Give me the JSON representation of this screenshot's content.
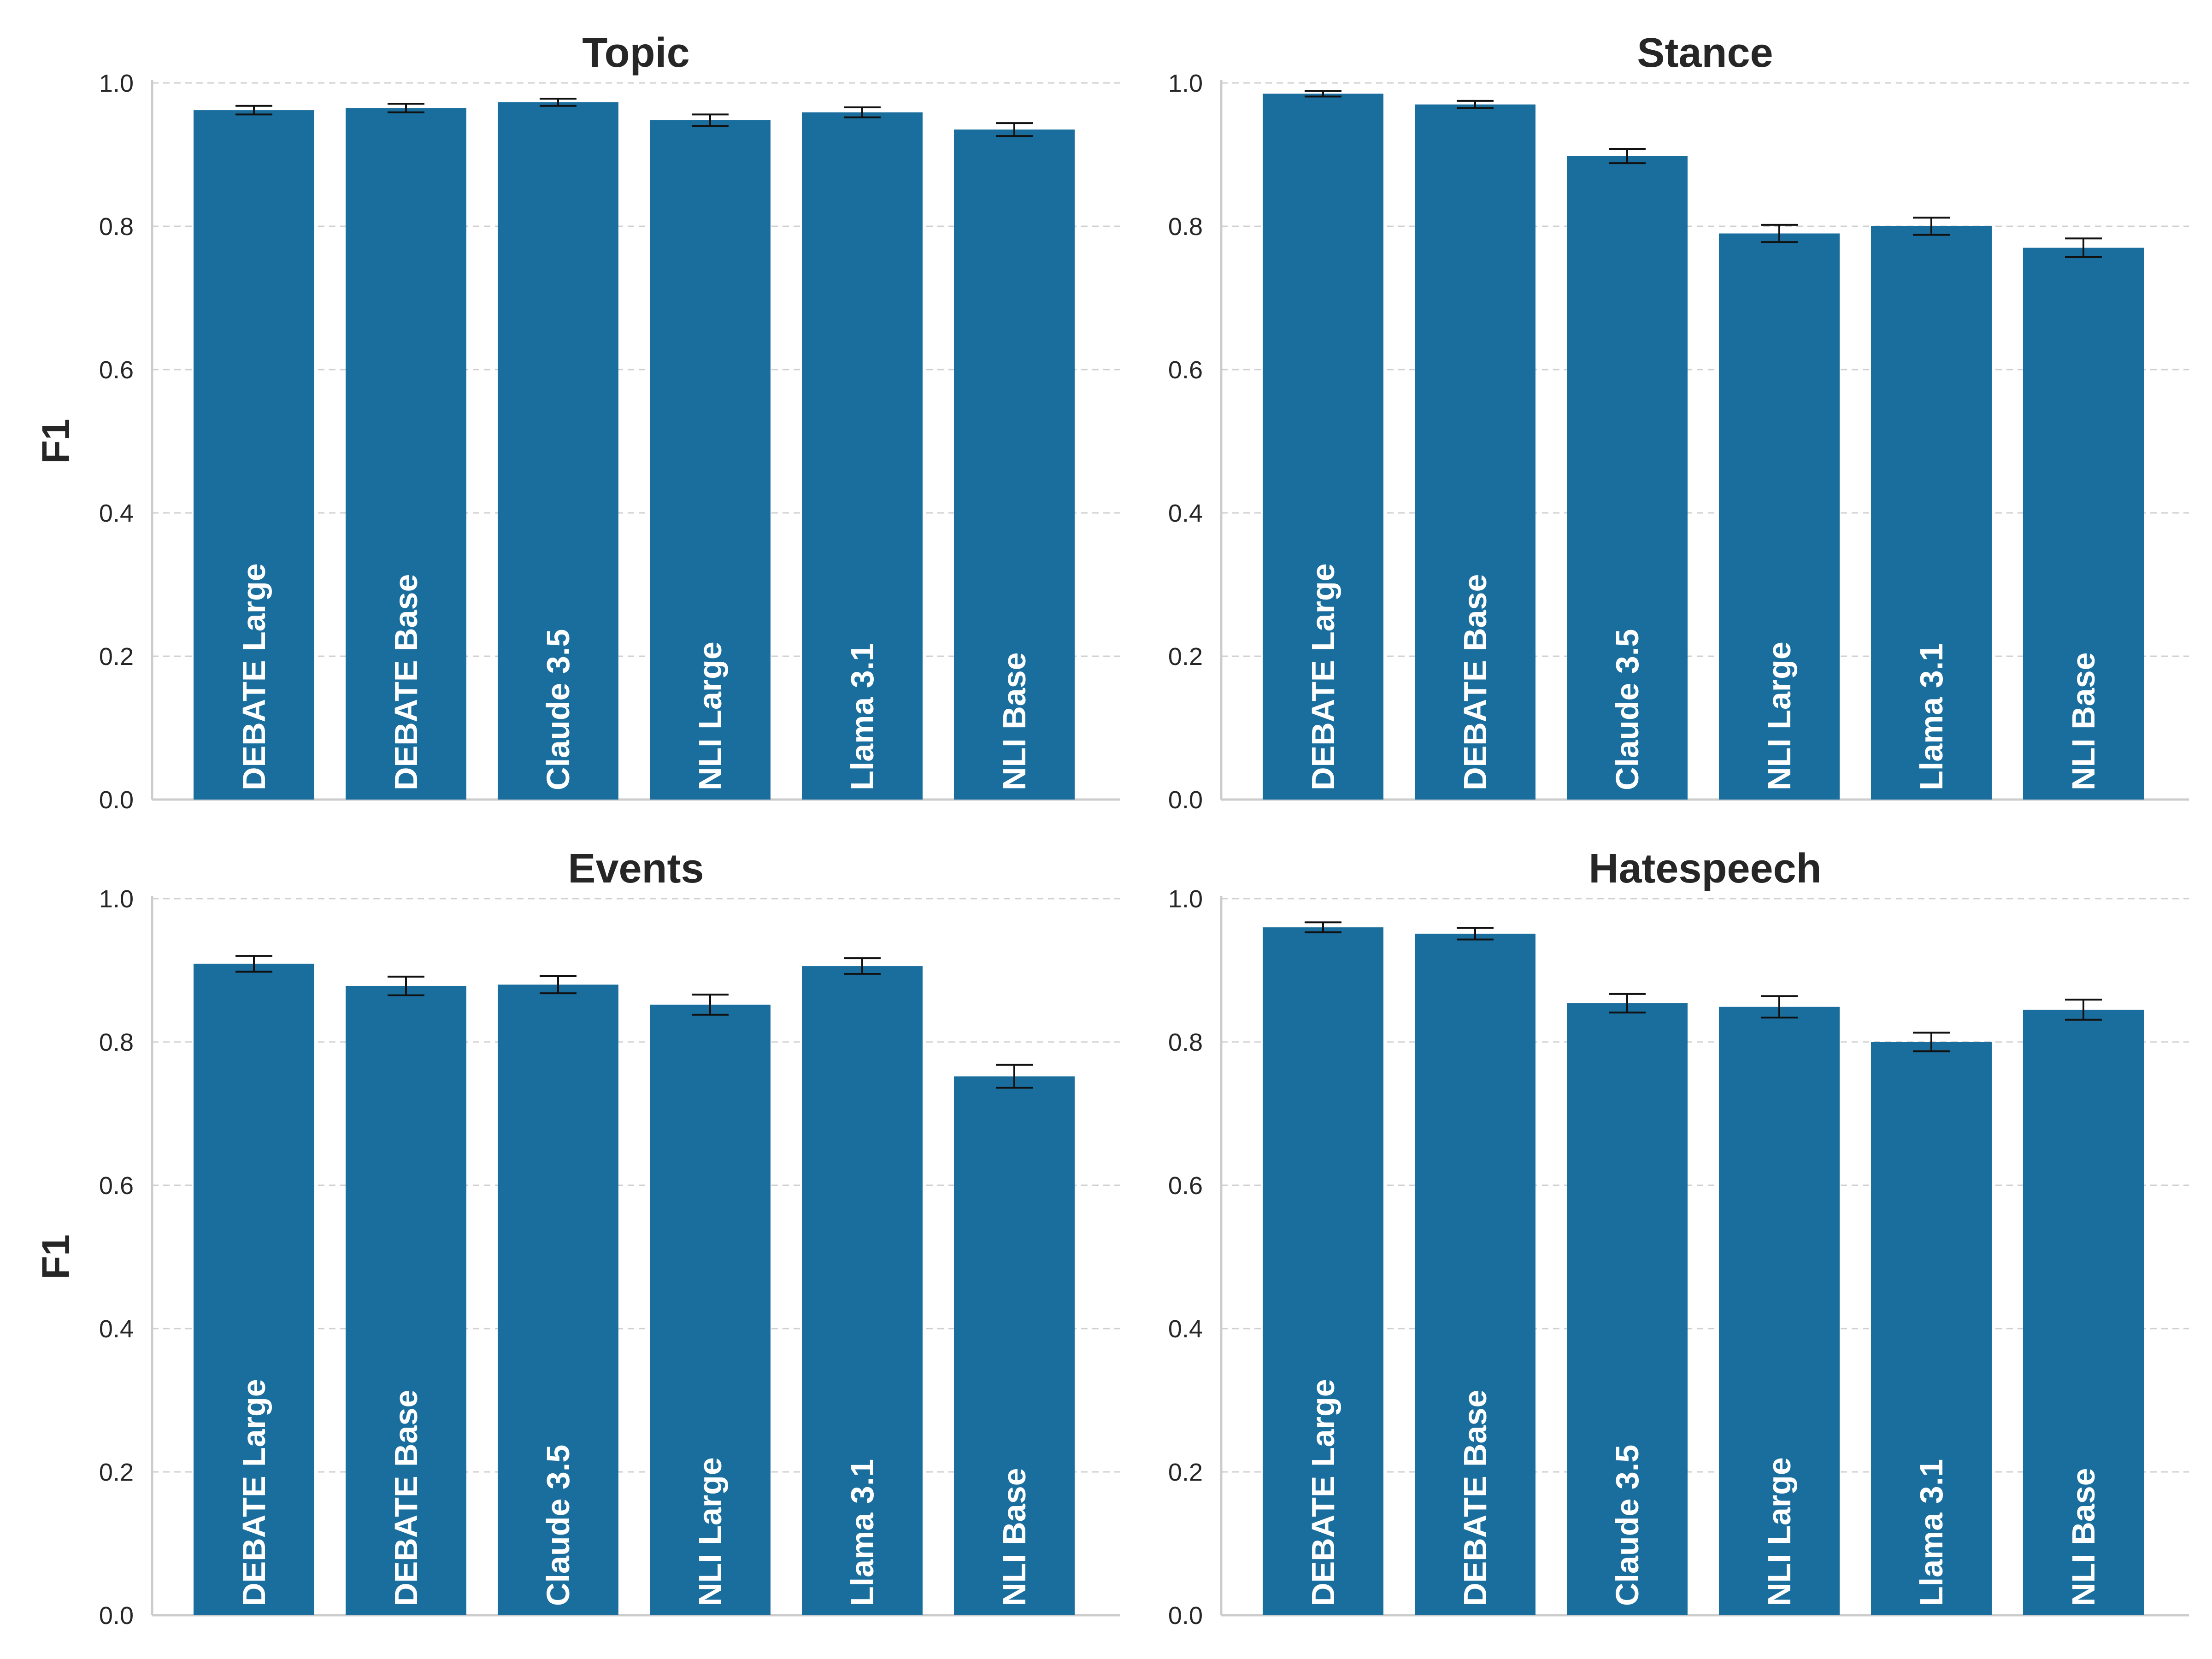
{
  "chart_data": [
    {
      "type": "bar",
      "title": "Topic",
      "ylabel": "F1",
      "ylim": [
        0,
        1.0
      ],
      "yticks": [
        "0.0",
        "0.2",
        "0.4",
        "0.6",
        "0.8",
        "1.0"
      ],
      "grid": "horizontal dashed",
      "categories": [
        "DEBATE Large",
        "DEBATE Base",
        "Claude 3.5",
        "NLI Large",
        "Llama 3.1",
        "NLI Base"
      ],
      "values": [
        0.962,
        0.965,
        0.973,
        0.948,
        0.959,
        0.935
      ],
      "errors": [
        0.006,
        0.006,
        0.005,
        0.008,
        0.007,
        0.009
      ],
      "color": "#1a6e9e"
    },
    {
      "type": "bar",
      "title": "Stance",
      "ylabel": "",
      "ylim": [
        0,
        1.0
      ],
      "yticks": [
        "0.0",
        "0.2",
        "0.4",
        "0.6",
        "0.8",
        "1.0"
      ],
      "grid": "horizontal dashed",
      "categories": [
        "DEBATE Large",
        "DEBATE Base",
        "Claude 3.5",
        "NLI Large",
        "Llama 3.1",
        "NLI Base"
      ],
      "values": [
        0.985,
        0.97,
        0.898,
        0.79,
        0.8,
        0.77
      ],
      "errors": [
        0.004,
        0.005,
        0.01,
        0.012,
        0.012,
        0.013
      ],
      "color": "#1a6e9e"
    },
    {
      "type": "bar",
      "title": "Events",
      "ylabel": "F1",
      "ylim": [
        0,
        1.0
      ],
      "yticks": [
        "0.0",
        "0.2",
        "0.4",
        "0.6",
        "0.8",
        "1.0"
      ],
      "grid": "horizontal dashed",
      "categories": [
        "DEBATE Large",
        "DEBATE Base",
        "Claude 3.5",
        "NLI Large",
        "Llama 3.1",
        "NLI Base"
      ],
      "values": [
        0.909,
        0.878,
        0.88,
        0.852,
        0.906,
        0.752
      ],
      "errors": [
        0.011,
        0.013,
        0.012,
        0.014,
        0.011,
        0.016
      ],
      "color": "#1a6e9e"
    },
    {
      "type": "bar",
      "title": "Hatespeech",
      "ylabel": "",
      "ylim": [
        0,
        1.0
      ],
      "yticks": [
        "0.0",
        "0.2",
        "0.4",
        "0.6",
        "0.8",
        "1.0"
      ],
      "grid": "horizontal dashed",
      "categories": [
        "DEBATE Large",
        "DEBATE Base",
        "Claude 3.5",
        "NLI Large",
        "Llama 3.1",
        "NLI Base"
      ],
      "values": [
        0.96,
        0.951,
        0.854,
        0.849,
        0.8,
        0.845
      ],
      "errors": [
        0.007,
        0.008,
        0.013,
        0.015,
        0.013,
        0.014
      ],
      "color": "#1a6e9e"
    }
  ]
}
